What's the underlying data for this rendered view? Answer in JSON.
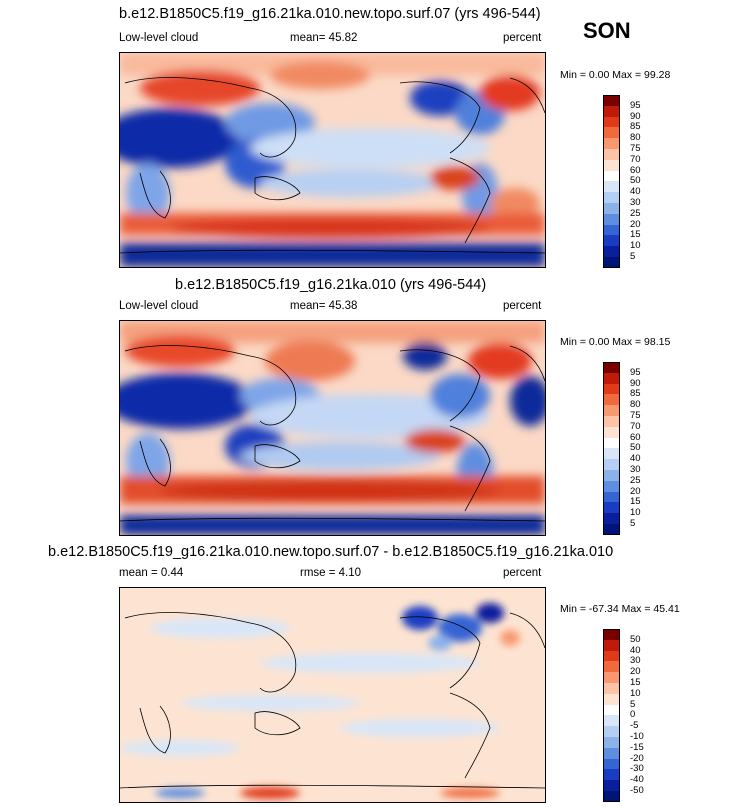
{
  "season": "SON",
  "panels": [
    {
      "title": "b.e12.B1850C5.f19_g16.21ka.010.new.topo.surf.07 (yrs 496-544)",
      "left_label": "Low-level cloud",
      "center_label": "mean=  45.82",
      "right_label": "percent",
      "minmax": "Min =   0.00 Max =  99.28"
    },
    {
      "title": "b.e12.B1850C5.f19_g16.21ka.010 (yrs 496-544)",
      "left_label": "Low-level cloud",
      "center_label": "mean=  45.38",
      "right_label": "percent",
      "minmax": "Min =   0.00 Max =  98.15"
    },
    {
      "title": "b.e12.B1850C5.f19_g16.21ka.010.new.topo.surf.07 - b.e12.B1850C5.f19_g16.21ka.010",
      "left_label": "mean =   0.44",
      "center_label": "rmse =   4.10",
      "right_label": "percent",
      "minmax": "Min = -67.34 Max =  45.41"
    }
  ],
  "colorbars": {
    "abs": {
      "labels": [
        "95",
        "90",
        "85",
        "80",
        "75",
        "70",
        "60",
        "50",
        "40",
        "30",
        "25",
        "20",
        "15",
        "10",
        "5"
      ],
      "colors": [
        "#7a0000",
        "#bf1a0a",
        "#e03a1a",
        "#f06a3e",
        "#f79870",
        "#fcc3a6",
        "#fde4d2",
        "#ffffff",
        "#d8e6f8",
        "#b4cff3",
        "#8cb2ea",
        "#5e8ee0",
        "#3564d3",
        "#1a3cc2",
        "#0a1f9e",
        "#001478"
      ]
    },
    "diff": {
      "labels": [
        "50",
        "40",
        "30",
        "20",
        "15",
        "10",
        "5",
        "0",
        "-5",
        "-10",
        "-15",
        "-20",
        "-30",
        "-40",
        "-50"
      ],
      "colors": [
        "#7a0000",
        "#bf1a0a",
        "#e03a1a",
        "#f06a3e",
        "#f79870",
        "#fcc3a6",
        "#fde4d2",
        "#ffffff",
        "#d8e6f8",
        "#b4cff3",
        "#8cb2ea",
        "#5e8ee0",
        "#3564d3",
        "#1a3cc2",
        "#0a1f9e",
        "#001478"
      ]
    }
  }
}
